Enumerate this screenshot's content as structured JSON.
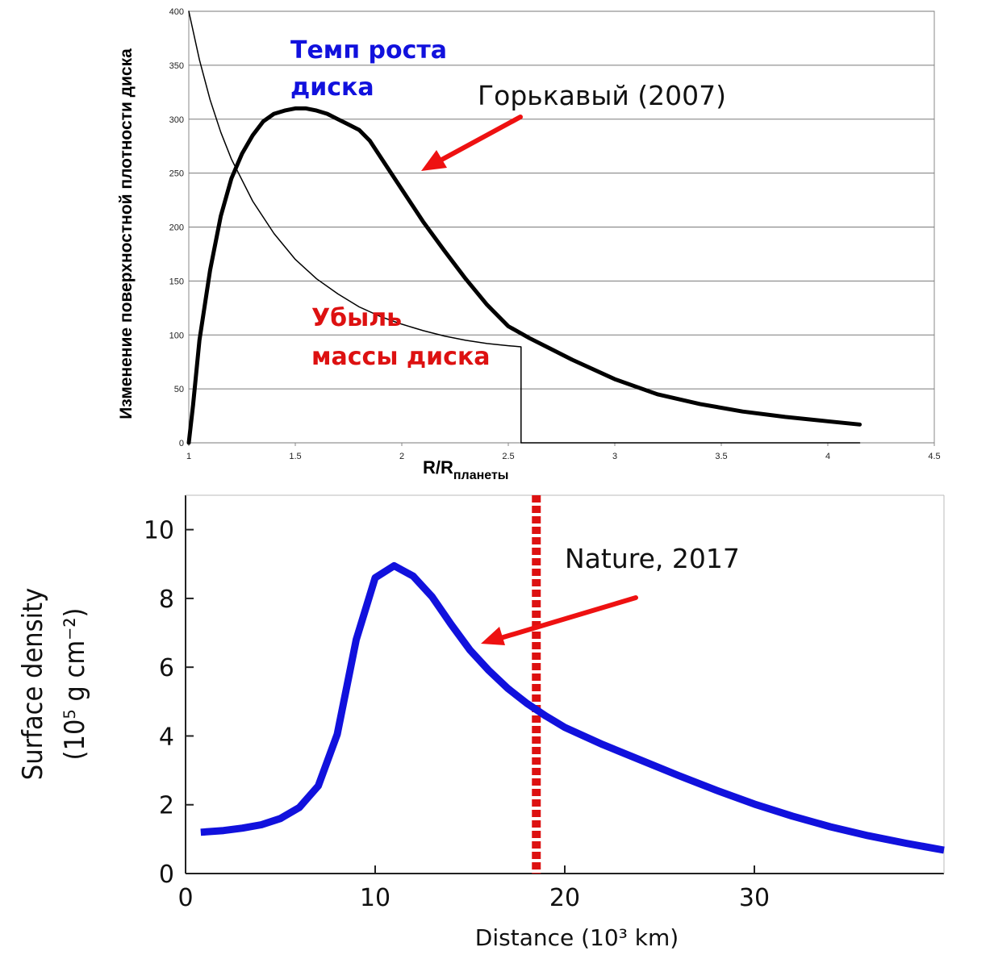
{
  "chart_data": [
    {
      "type": "line",
      "ylabel": "Изменение поверхностной плотности диска",
      "xlabel_main": "R/R",
      "xlabel_sub": "планеты",
      "xlim": [
        1,
        4.5
      ],
      "ylim": [
        0,
        400
      ],
      "x_ticks": [
        "1",
        "1.5",
        "2",
        "2.5",
        "3",
        "3.5",
        "4",
        "4.5"
      ],
      "y_ticks": [
        "0",
        "50",
        "100",
        "150",
        "200",
        "250",
        "300",
        "350",
        "400"
      ],
      "grid": "horizontal",
      "series": [
        {
          "name": "Темп роста диска",
          "color": "#000000",
          "x": [
            1.0,
            1.02,
            1.05,
            1.1,
            1.15,
            1.2,
            1.25,
            1.3,
            1.35,
            1.4,
            1.45,
            1.5,
            1.55,
            1.6,
            1.65,
            1.7,
            1.75,
            1.8,
            1.85,
            1.9,
            2.0,
            2.1,
            2.2,
            2.3,
            2.4,
            2.5,
            2.6,
            2.7,
            2.8,
            3.0,
            3.2,
            3.4,
            3.6,
            3.8,
            4.0,
            4.15
          ],
          "y": [
            0,
            35,
            95,
            160,
            210,
            245,
            268,
            285,
            298,
            305,
            308,
            310,
            310,
            308,
            305,
            300,
            295,
            290,
            280,
            265,
            235,
            205,
            178,
            152,
            128,
            108,
            97,
            87,
            77,
            59,
            45,
            36,
            29,
            24,
            20,
            17
          ]
        },
        {
          "name": "Убыль массы диска",
          "color": "#000000",
          "x": [
            1.0,
            1.05,
            1.1,
            1.15,
            1.2,
            1.3,
            1.4,
            1.5,
            1.6,
            1.7,
            1.8,
            1.9,
            2.0,
            2.1,
            2.2,
            2.3,
            2.4,
            2.5,
            2.56,
            2.56,
            4.15
          ],
          "y": [
            400,
            355,
            318,
            288,
            263,
            224,
            194,
            170,
            152,
            138,
            126,
            117,
            110,
            104,
            99,
            95,
            92,
            90,
            89,
            0,
            0
          ]
        }
      ],
      "annotations": {
        "growth_label": [
          "Темп роста",
          "диска"
        ],
        "loss_label": [
          "Убыль",
          "массы диска"
        ],
        "reference": "Горькавый (2007)"
      }
    },
    {
      "type": "line",
      "ylabel": "Surface density",
      "ylabel_units": "(10⁵ g cm⁻²)",
      "xlabel": "Distance (10³ km)",
      "xlim": [
        0,
        40
      ],
      "ylim": [
        0,
        11
      ],
      "x_ticks": [
        "0",
        "10",
        "20",
        "30"
      ],
      "y_ticks": [
        "0",
        "2",
        "4",
        "6",
        "8",
        "10"
      ],
      "grid": false,
      "series": [
        {
          "color": "#1111dd",
          "x": [
            0.8,
            2,
            3,
            4,
            5,
            6,
            7,
            8,
            9,
            10,
            11,
            12,
            13,
            14,
            15,
            16,
            17,
            18,
            19,
            20,
            22,
            24,
            26,
            28,
            30,
            32,
            34,
            36,
            38,
            40
          ],
          "y": [
            1.2,
            1.25,
            1.32,
            1.42,
            1.6,
            1.92,
            2.55,
            4.05,
            6.8,
            8.6,
            8.95,
            8.65,
            8.05,
            7.25,
            6.5,
            5.9,
            5.38,
            4.95,
            4.58,
            4.25,
            3.75,
            3.3,
            2.85,
            2.42,
            2.02,
            1.67,
            1.36,
            1.1,
            0.88,
            0.68
          ]
        }
      ],
      "vline": {
        "x": 18.5,
        "color": "#dd1111",
        "style": "dotted"
      },
      "annotations": {
        "reference": "Nature, 2017"
      }
    }
  ]
}
